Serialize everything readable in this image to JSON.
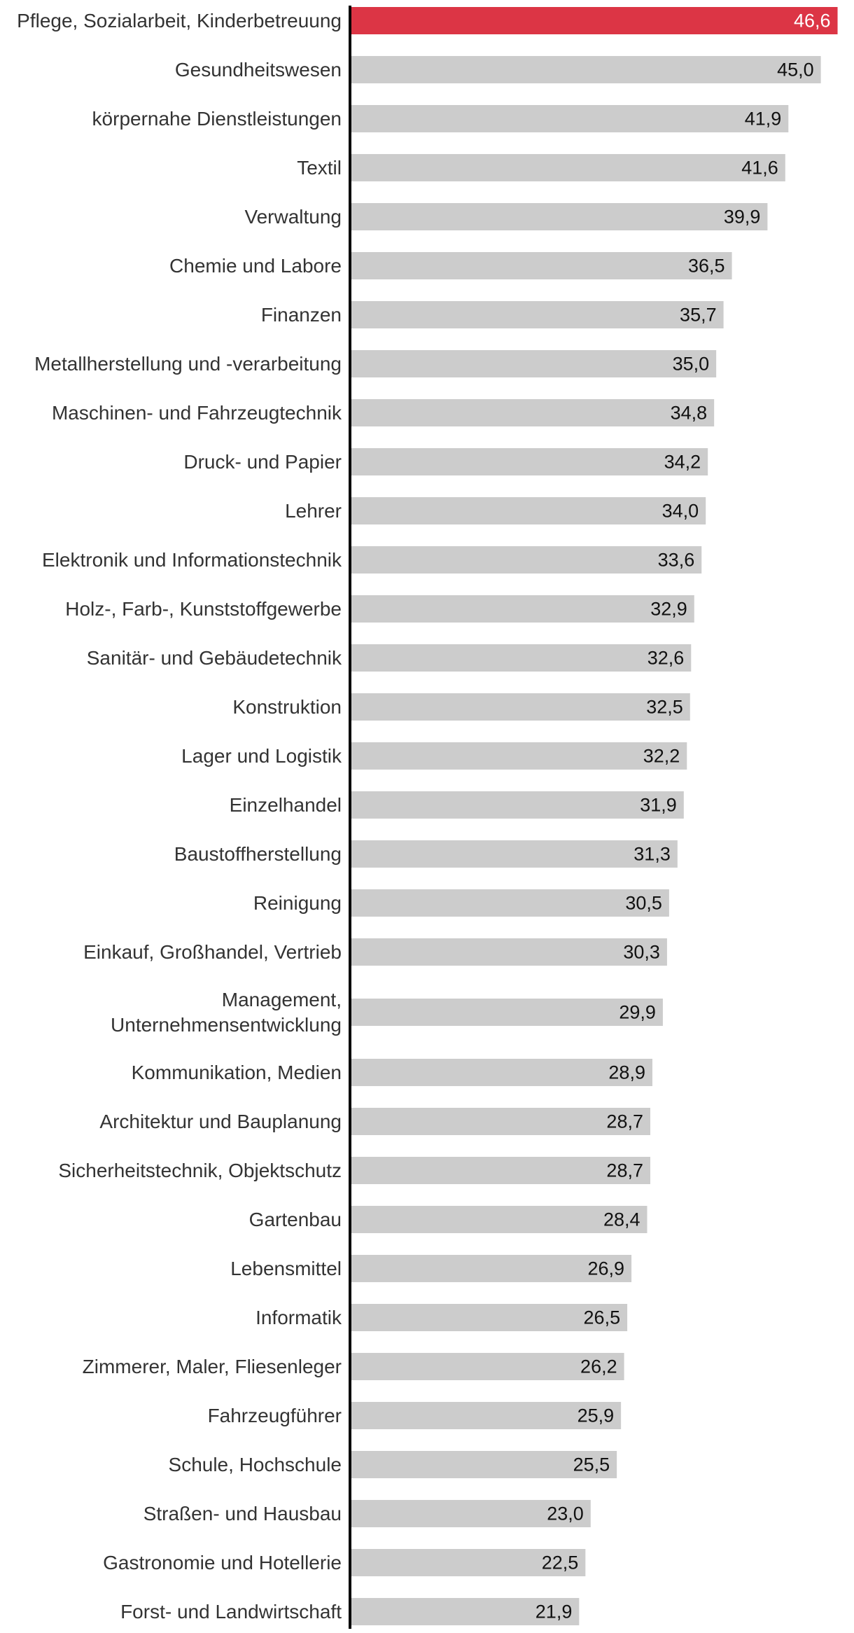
{
  "chart_data": {
    "type": "bar",
    "orientation": "horizontal",
    "title": "",
    "xlabel": "",
    "ylabel": "",
    "xlim": [
      0,
      47.5
    ],
    "grid": false,
    "highlight_color": "#dc3545",
    "bar_color": "#cccccc",
    "highlight_index": 0,
    "categories": [
      [
        "Pflege, Sozialarbeit, Kinderbetreuung"
      ],
      [
        "Gesundheitswesen"
      ],
      [
        "körpernahe Dienstleistungen"
      ],
      [
        "Textil"
      ],
      [
        "Verwaltung"
      ],
      [
        "Chemie und Labore"
      ],
      [
        "Finanzen"
      ],
      [
        "Metallherstellung und -verarbeitung"
      ],
      [
        "Maschinen- und Fahrzeugtechnik"
      ],
      [
        "Druck- und Papier"
      ],
      [
        "Lehrer"
      ],
      [
        "Elektronik und Informationstechnik"
      ],
      [
        "Holz-, Farb-, Kunststoffgewerbe"
      ],
      [
        "Sanitär- und Gebäudetechnik"
      ],
      [
        "Konstruktion"
      ],
      [
        "Lager und Logistik"
      ],
      [
        "Einzelhandel"
      ],
      [
        "Baustoffherstellung"
      ],
      [
        "Reinigung"
      ],
      [
        "Einkauf, Großhandel, Vertrieb"
      ],
      [
        "Management,",
        "Unternehmensentwicklung"
      ],
      [
        "Kommunikation, Medien"
      ],
      [
        "Architektur und Bauplanung"
      ],
      [
        "Sicherheitstechnik, Objektschutz"
      ],
      [
        "Gartenbau"
      ],
      [
        "Lebensmittel"
      ],
      [
        "Informatik"
      ],
      [
        "Zimmerer, Maler, Fliesenleger"
      ],
      [
        "Fahrzeugführer"
      ],
      [
        "Schule, Hochschule"
      ],
      [
        "Straßen- und Hausbau"
      ],
      [
        "Gastronomie und Hotellerie"
      ],
      [
        "Forst- und Landwirtschaft"
      ]
    ],
    "values": [
      46.6,
      45.0,
      41.9,
      41.6,
      39.9,
      36.5,
      35.7,
      35.0,
      34.8,
      34.2,
      34.0,
      33.6,
      32.9,
      32.6,
      32.5,
      32.2,
      31.9,
      31.3,
      30.5,
      30.3,
      29.9,
      28.9,
      28.7,
      28.7,
      28.4,
      26.9,
      26.5,
      26.2,
      25.9,
      25.5,
      23.0,
      22.5,
      21.9
    ],
    "value_labels": [
      "46,6",
      "45,0",
      "41,9",
      "41,6",
      "39,9",
      "36,5",
      "35,7",
      "35,0",
      "34,8",
      "34,2",
      "34,0",
      "33,6",
      "32,9",
      "32,6",
      "32,5",
      "32,2",
      "31,9",
      "31,3",
      "30,5",
      "30,3",
      "29,9",
      "28,9",
      "28,7",
      "28,7",
      "28,4",
      "26,9",
      "26,5",
      "26,2",
      "25,9",
      "25,5",
      "23,0",
      "22,5",
      "21,9"
    ]
  }
}
